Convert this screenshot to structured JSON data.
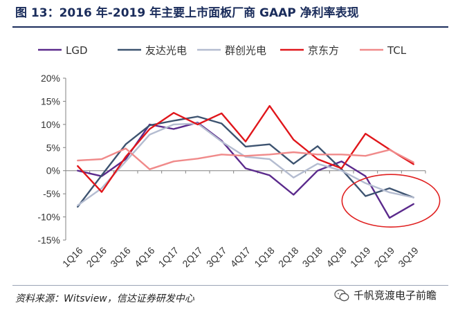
{
  "header": {
    "title": "图 13：2016 年-2019 年主要上市面板厂商 GAAP 净利率表现"
  },
  "footer": {
    "source": "资料来源：Witsview，信达证券研发中心",
    "watermark": "千帆竞渡电子前瞻",
    "watermark_icon": "wechat-icon"
  },
  "chart_data": {
    "type": "line",
    "categories": [
      "1Q16",
      "2Q16",
      "3Q16",
      "4Q16",
      "1Q17",
      "2Q17",
      "3Q17",
      "4Q17",
      "1Q18",
      "2Q18",
      "3Q18",
      "4Q18",
      "1Q19",
      "2Q19",
      "3Q19"
    ],
    "ylim": [
      -15,
      20
    ],
    "yticks": [
      -15,
      -10,
      -5,
      0,
      5,
      10,
      15,
      20
    ],
    "ytick_labels": [
      "-15%",
      "-10%",
      "-5%",
      "0%",
      "5%",
      "10%",
      "15%",
      "20%"
    ],
    "grid": false,
    "legend_position": "top",
    "annotation": {
      "type": "ellipse",
      "color": "#e02020",
      "range": [
        "1Q19",
        "3Q19"
      ]
    },
    "series": [
      {
        "name": "LGD",
        "color": "#5b2a8c",
        "values": [
          0,
          -1.2,
          2.5,
          10,
          9,
          10.4,
          6.5,
          0.5,
          -1,
          -5.2,
          0,
          2,
          -1.2,
          -10.2,
          -7.2
        ]
      },
      {
        "name": "友达光电",
        "color": "#3d5370",
        "values": [
          -7.8,
          -1,
          5.7,
          9.8,
          10.8,
          11.7,
          10.2,
          5.2,
          5.7,
          1.5,
          5.3,
          0.3,
          -5.5,
          -3.8,
          -5.8
        ]
      },
      {
        "name": "群创光电",
        "color": "#b4bcd0",
        "values": [
          -7.5,
          -3.8,
          2,
          7.8,
          10,
          10.2,
          6.3,
          3,
          2.5,
          -1.5,
          1.5,
          0,
          -2.7,
          -4.7,
          -5.8
        ]
      },
      {
        "name": "京东方",
        "color": "#e0161b",
        "values": [
          1,
          -4.6,
          3,
          9,
          12.5,
          10,
          12.4,
          6.3,
          14,
          6.7,
          2.5,
          0.5,
          8,
          4.6,
          1.4
        ]
      },
      {
        "name": "TCL",
        "color": "#f08a8a",
        "values": [
          2.2,
          2.5,
          4.8,
          0.3,
          2,
          2.6,
          3.5,
          3.2,
          3.5,
          4,
          3.5,
          3.5,
          3.2,
          4.5,
          1.8
        ]
      }
    ]
  }
}
